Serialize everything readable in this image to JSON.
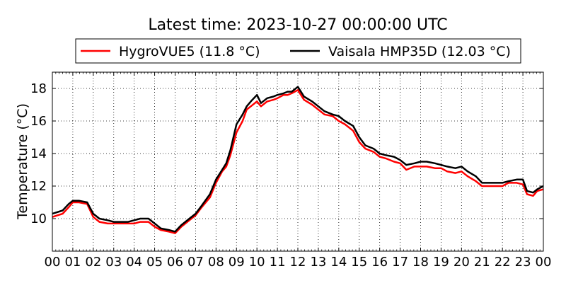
{
  "chart_data": {
    "type": "line",
    "title": "Latest time: 2023-10-27 00:00:00 UTC",
    "xlabel": "",
    "ylabel": "Temperature (°C)",
    "xlim": [
      0,
      24
    ],
    "ylim": [
      8,
      19
    ],
    "x_ticks": [
      "00",
      "01",
      "02",
      "03",
      "04",
      "05",
      "06",
      "07",
      "08",
      "09",
      "10",
      "11",
      "12",
      "13",
      "14",
      "15",
      "16",
      "17",
      "18",
      "19",
      "20",
      "21",
      "22",
      "23",
      "00"
    ],
    "y_ticks": [
      10,
      12,
      14,
      16,
      18
    ],
    "grid": true,
    "legend_position": "top-center",
    "series": [
      {
        "name": "HygroVUE5 (11.8 °C)",
        "color": "#ff0000",
        "x": [
          0,
          0.5,
          0.8,
          1.0,
          1.3,
          1.7,
          2.0,
          2.3,
          2.7,
          3.0,
          3.3,
          3.7,
          4.0,
          4.3,
          4.7,
          5.0,
          5.3,
          5.7,
          6.0,
          6.3,
          6.7,
          7.0,
          7.3,
          7.7,
          8.0,
          8.3,
          8.5,
          8.7,
          9.0,
          9.3,
          9.5,
          9.7,
          10.0,
          10.2,
          10.5,
          10.8,
          11.0,
          11.3,
          11.5,
          11.7,
          12.0,
          12.3,
          12.7,
          13.0,
          13.3,
          13.7,
          14.0,
          14.3,
          14.7,
          15.0,
          15.3,
          15.7,
          16.0,
          16.3,
          16.7,
          17.0,
          17.3,
          17.7,
          18.0,
          18.3,
          18.7,
          19.0,
          19.3,
          19.7,
          20.0,
          20.3,
          20.7,
          21.0,
          21.3,
          21.7,
          22.0,
          22.3,
          22.7,
          23.0,
          23.2,
          23.5,
          23.7,
          24.0
        ],
        "y": [
          10.1,
          10.3,
          10.7,
          11.0,
          11.0,
          10.9,
          10.1,
          9.8,
          9.7,
          9.7,
          9.7,
          9.7,
          9.7,
          9.8,
          9.8,
          9.5,
          9.3,
          9.2,
          9.1,
          9.5,
          9.9,
          10.2,
          10.7,
          11.3,
          12.2,
          12.9,
          13.2,
          13.9,
          15.3,
          16.0,
          16.7,
          16.9,
          17.2,
          16.9,
          17.2,
          17.3,
          17.4,
          17.6,
          17.6,
          17.7,
          17.9,
          17.3,
          17.0,
          16.7,
          16.4,
          16.3,
          16.0,
          15.8,
          15.4,
          14.7,
          14.3,
          14.1,
          13.8,
          13.7,
          13.5,
          13.4,
          13.0,
          13.2,
          13.2,
          13.2,
          13.1,
          13.1,
          12.9,
          12.8,
          12.9,
          12.6,
          12.3,
          12.0,
          12.0,
          12.0,
          12.0,
          12.2,
          12.2,
          12.1,
          11.5,
          11.4,
          11.7,
          11.8
        ]
      },
      {
        "name": "Vaisala HMP35D (12.03 °C)",
        "color": "#000000",
        "x": [
          0,
          0.5,
          0.8,
          1.0,
          1.3,
          1.7,
          2.0,
          2.3,
          2.7,
          3.0,
          3.3,
          3.7,
          4.0,
          4.3,
          4.7,
          5.0,
          5.3,
          5.7,
          6.0,
          6.3,
          6.7,
          7.0,
          7.3,
          7.7,
          8.0,
          8.3,
          8.5,
          8.7,
          9.0,
          9.3,
          9.5,
          9.7,
          10.0,
          10.2,
          10.5,
          10.8,
          11.0,
          11.3,
          11.5,
          11.7,
          12.0,
          12.3,
          12.7,
          13.0,
          13.3,
          13.7,
          14.0,
          14.3,
          14.7,
          15.0,
          15.3,
          15.7,
          16.0,
          16.3,
          16.7,
          17.0,
          17.3,
          17.7,
          18.0,
          18.3,
          18.7,
          19.0,
          19.3,
          19.7,
          20.0,
          20.3,
          20.7,
          21.0,
          21.3,
          21.7,
          22.0,
          22.3,
          22.7,
          23.0,
          23.2,
          23.5,
          23.7,
          24.0
        ],
        "y": [
          10.3,
          10.5,
          10.9,
          11.1,
          11.1,
          11.0,
          10.3,
          10.0,
          9.9,
          9.8,
          9.8,
          9.8,
          9.9,
          10.0,
          10.0,
          9.7,
          9.4,
          9.3,
          9.2,
          9.6,
          10.0,
          10.3,
          10.8,
          11.5,
          12.4,
          13.0,
          13.4,
          14.2,
          15.8,
          16.4,
          16.9,
          17.2,
          17.6,
          17.1,
          17.4,
          17.5,
          17.6,
          17.7,
          17.8,
          17.8,
          18.1,
          17.5,
          17.2,
          16.9,
          16.6,
          16.4,
          16.3,
          16.0,
          15.7,
          15.0,
          14.5,
          14.3,
          14.0,
          13.9,
          13.8,
          13.6,
          13.3,
          13.4,
          13.5,
          13.5,
          13.4,
          13.3,
          13.2,
          13.1,
          13.2,
          12.9,
          12.6,
          12.2,
          12.2,
          12.2,
          12.2,
          12.3,
          12.4,
          12.4,
          11.7,
          11.6,
          11.8,
          12.0
        ]
      }
    ]
  }
}
